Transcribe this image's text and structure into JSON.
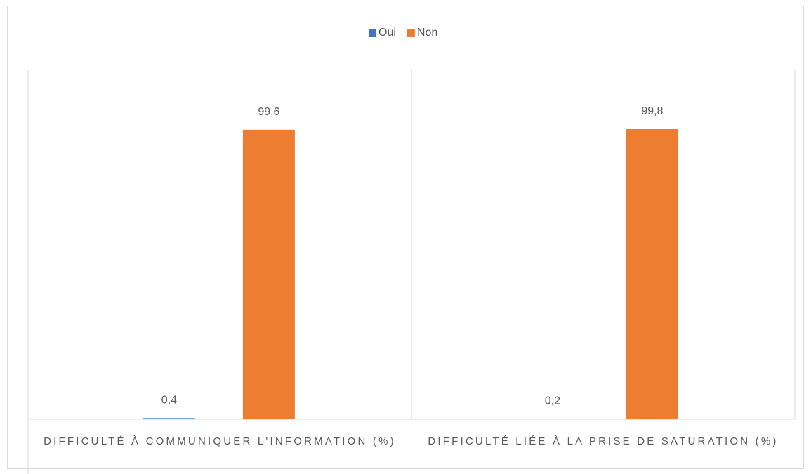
{
  "chart_data": {
    "type": "bar",
    "categories": [
      "DIFFICULTÉ À COMMUNIQUER L'INFORMATION (%)",
      "DIFFICULTÉ LIÉE À LA PRISE DE SATURATION (%)"
    ],
    "series": [
      {
        "name": "Oui",
        "color": "#4472c4",
        "values": [
          0.4,
          0.2
        ],
        "value_labels": [
          "0,4",
          "0,2"
        ]
      },
      {
        "name": "Non",
        "color": "#ed7d31",
        "values": [
          99.6,
          99.8
        ],
        "value_labels": [
          "99,6",
          "99,8"
        ]
      }
    ],
    "legend": "top"
  }
}
